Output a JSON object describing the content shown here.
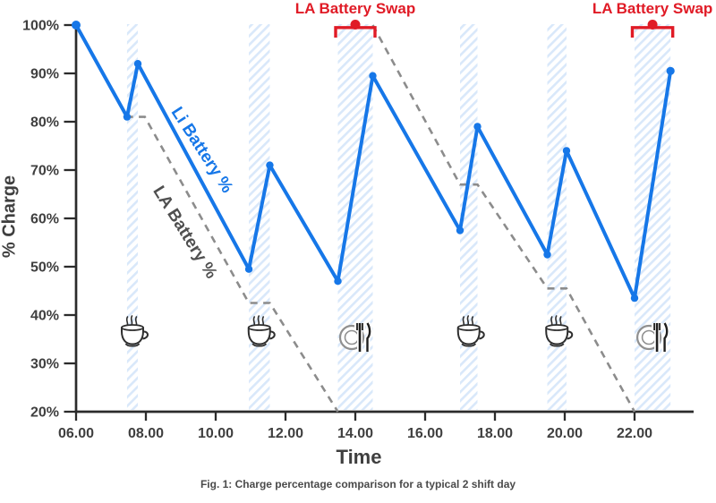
{
  "figure": {
    "caption": "Fig. 1: Charge percentage comparison for a typical 2 shift day"
  },
  "colors": {
    "li_blue": "#1677e8",
    "la_gray": "#8c8c8c",
    "swap_red": "#e01b26",
    "axis": "#2b2b2b",
    "tick_label": "#3f3f3f",
    "band_stripe": "#d9e8fa",
    "background": "#ffffff"
  },
  "chart_data": {
    "type": "line",
    "title": "",
    "xlabel": "Time",
    "ylabel": "% Charge",
    "xlim": [
      6.0,
      23.7
    ],
    "ylim": [
      20,
      100
    ],
    "grid": false,
    "legend_position": "inline-rotated-labels",
    "x_tick_hours": [
      6,
      8,
      10,
      12,
      14,
      16,
      18,
      20,
      22
    ],
    "x_tick_labels": [
      "06.00",
      "08.00",
      "10.00",
      "12.00",
      "14.00",
      "16.00",
      "18.00",
      "20.00",
      "22.00"
    ],
    "y_tick_values": [
      100,
      90,
      80,
      70,
      60,
      50,
      40,
      30,
      20
    ],
    "y_tick_labels": [
      "100%",
      "90%",
      "80%",
      "70%",
      "60%",
      "50%",
      "40%",
      "30%",
      "20%"
    ],
    "series": [
      {
        "name": "Li Battery %",
        "color": "#1677e8",
        "line_style": "solid",
        "markers": true,
        "points_time_pct": [
          [
            6.0,
            100
          ],
          [
            7.46,
            81
          ],
          [
            7.77,
            92
          ],
          [
            10.95,
            49.5
          ],
          [
            11.55,
            71
          ],
          [
            13.5,
            47
          ],
          [
            14.5,
            89.5
          ],
          [
            17.0,
            57.5
          ],
          [
            17.5,
            79
          ],
          [
            19.5,
            52.5
          ],
          [
            20.05,
            74
          ],
          [
            22.0,
            43.5
          ],
          [
            23.03,
            90.5
          ]
        ]
      },
      {
        "name": "LA Battery %",
        "color": "#8c8c8c",
        "line_style": "dashed",
        "markers": false,
        "segments_time_pct": [
          [
            [
              6.0,
              100
            ],
            [
              7.46,
              81
            ],
            [
              7.97,
              81
            ],
            [
              10.95,
              42.5
            ],
            [
              11.55,
              42.5
            ],
            [
              13.5,
              20
            ]
          ],
          [
            [
              14.5,
              100
            ],
            [
              17.0,
              67
            ],
            [
              17.5,
              67
            ],
            [
              19.5,
              45.5
            ],
            [
              20.05,
              45.5
            ],
            [
              22.0,
              20
            ]
          ]
        ]
      }
    ],
    "break_bands": [
      {
        "start": 7.46,
        "end": 7.77,
        "icon": "coffee"
      },
      {
        "start": 10.95,
        "end": 11.55,
        "icon": "coffee"
      },
      {
        "start": 13.5,
        "end": 14.5,
        "icon": "meal"
      },
      {
        "start": 17.0,
        "end": 17.5,
        "icon": "coffee"
      },
      {
        "start": 19.5,
        "end": 20.05,
        "icon": "coffee"
      },
      {
        "start": 22.0,
        "end": 23.03,
        "icon": "meal"
      }
    ],
    "annotations": [
      {
        "label": "LA Battery Swap",
        "band_index": 2
      },
      {
        "label": "LA Battery Swap",
        "band_index": 5
      }
    ]
  }
}
